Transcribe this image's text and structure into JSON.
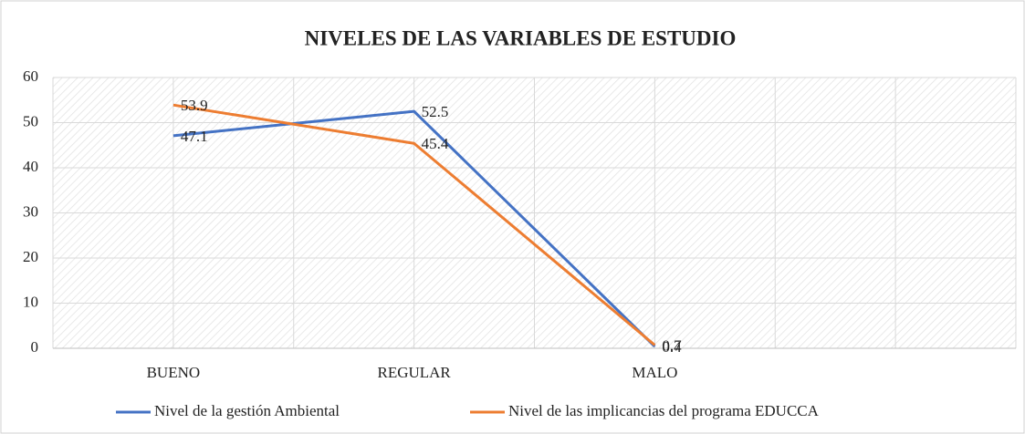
{
  "chart_data": {
    "type": "line",
    "title": "NIVELES DE LAS VARIABLES DE ESTUDIO",
    "categories": [
      "BUENO",
      "REGULAR",
      "MALO",
      null
    ],
    "series": [
      {
        "name": "Nivel de la gestión Ambiental",
        "color": "#4472c4",
        "values": [
          47.1,
          52.5,
          0.4,
          null
        ]
      },
      {
        "name": "Nivel de las implicancias del programa EDUCCA",
        "color": "#ed7d31",
        "values": [
          53.9,
          45.4,
          0.7,
          null
        ]
      }
    ],
    "ylim": [
      0,
      60
    ],
    "yticks": [
      0,
      10,
      20,
      30,
      40,
      50,
      60
    ],
    "grid": true,
    "legend": "bottom"
  }
}
